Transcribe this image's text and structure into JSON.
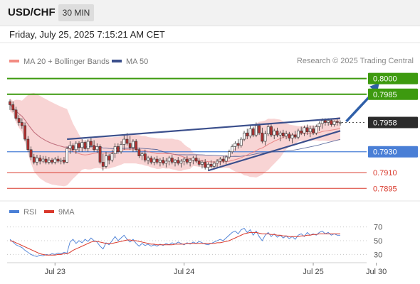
{
  "header": {
    "symbol": "USD/CHF",
    "timeframe": "30 MIN"
  },
  "datetime": "Friday, July 25, 2025 7:15:21 AM CET",
  "credit": "Research © 2025 Trading Central",
  "colors": {
    "green": "#3d9a0f",
    "blue": "#4a7fd6",
    "red": "#d9382b",
    "dark": "#2b2b2b",
    "arrow": "#2f5fa8",
    "bollinger": "#f6c6c6",
    "ma20": "#e57373",
    "ma50": "#3b4f8c",
    "candle_up": "#ffffff",
    "candle_down": "#b03030"
  },
  "chart_data": [
    {
      "type": "candlestick",
      "ylim": [
        0.7885,
        0.8012
      ],
      "legend": [
        {
          "label": "MA 20 + Bollinger Bands",
          "color": "#f28b82"
        },
        {
          "label": "MA 50",
          "color": "#3b4f8c"
        }
      ],
      "x_ticks": [
        {
          "label": "Jul 23",
          "x": 15
        },
        {
          "label": "Jul 24",
          "x": 58
        },
        {
          "label": "Jul 25",
          "x": 101
        },
        {
          "label": "Jul 30",
          "x": 122
        }
      ],
      "levels": [
        {
          "value": 0.8,
          "label": "0.8000",
          "kind": "resistance",
          "color": "#3d9a0f"
        },
        {
          "value": 0.7985,
          "label": "0.7985",
          "kind": "resistance",
          "color": "#3d9a0f"
        },
        {
          "value": 0.7958,
          "label": "0.7958",
          "kind": "last",
          "color": "#2b2b2b"
        },
        {
          "value": 0.793,
          "label": "0.7930",
          "kind": "pivot",
          "color": "#4a7fd6"
        },
        {
          "value": 0.791,
          "label": "0.7910",
          "kind": "support",
          "color": "#d9382b"
        },
        {
          "value": 0.7895,
          "label": "0.7895",
          "kind": "support",
          "color": "#d9382b"
        }
      ],
      "trendlines": [
        {
          "x": [
            19,
            110
          ],
          "y": [
            0.7942,
            0.7962
          ]
        },
        {
          "x": [
            66,
            110
          ],
          "y": [
            0.7912,
            0.795
          ]
        }
      ],
      "forecast_arrow": {
        "x": [
          112,
          123
        ],
        "y": [
          0.7959,
          0.7996
        ]
      },
      "candles": [
        [
          0,
          0.7978,
          0.798,
          0.797,
          0.7975
        ],
        [
          1,
          0.7975,
          0.7978,
          0.7968,
          0.797
        ],
        [
          2,
          0.797,
          0.7973,
          0.796,
          0.7962
        ],
        [
          3,
          0.7962,
          0.7965,
          0.7955,
          0.7958
        ],
        [
          4,
          0.7958,
          0.7962,
          0.7952,
          0.7955
        ],
        [
          5,
          0.7955,
          0.7958,
          0.794,
          0.7942
        ],
        [
          6,
          0.7942,
          0.7945,
          0.793,
          0.7932
        ],
        [
          7,
          0.7932,
          0.7935,
          0.7922,
          0.7925
        ],
        [
          8,
          0.7925,
          0.7928,
          0.7918,
          0.792
        ],
        [
          9,
          0.792,
          0.7927,
          0.7917,
          0.7924
        ],
        [
          10,
          0.7924,
          0.7927,
          0.7918,
          0.7921
        ],
        [
          11,
          0.7921,
          0.7926,
          0.7919,
          0.7923
        ],
        [
          12,
          0.7923,
          0.7926,
          0.7918,
          0.792
        ],
        [
          13,
          0.792,
          0.7925,
          0.7918,
          0.7922
        ],
        [
          14,
          0.7922,
          0.7924,
          0.7918,
          0.792
        ],
        [
          15,
          0.792,
          0.7925,
          0.7918,
          0.7923
        ],
        [
          16,
          0.7923,
          0.7926,
          0.7919,
          0.7921
        ],
        [
          17,
          0.7921,
          0.7924,
          0.7918,
          0.7922
        ],
        [
          18,
          0.7922,
          0.7925,
          0.7918,
          0.792
        ],
        [
          19,
          0.792,
          0.7935,
          0.7919,
          0.7933
        ],
        [
          20,
          0.7933,
          0.794,
          0.7928,
          0.7936
        ],
        [
          21,
          0.7936,
          0.7938,
          0.793,
          0.7932
        ],
        [
          22,
          0.7932,
          0.794,
          0.7928,
          0.7938
        ],
        [
          23,
          0.7938,
          0.794,
          0.793,
          0.7934
        ],
        [
          24,
          0.7934,
          0.7942,
          0.793,
          0.7939
        ],
        [
          25,
          0.7939,
          0.7941,
          0.7931,
          0.7933
        ],
        [
          26,
          0.7933,
          0.7942,
          0.793,
          0.794
        ],
        [
          27,
          0.794,
          0.7943,
          0.7934,
          0.7936
        ],
        [
          28,
          0.7936,
          0.7941,
          0.793,
          0.7932
        ],
        [
          29,
          0.7932,
          0.7938,
          0.7929,
          0.7935
        ],
        [
          30,
          0.7935,
          0.7937,
          0.7918,
          0.792
        ],
        [
          31,
          0.792,
          0.7928,
          0.7912,
          0.7916
        ],
        [
          32,
          0.7916,
          0.793,
          0.7914,
          0.7926
        ],
        [
          33,
          0.7926,
          0.7928,
          0.7918,
          0.7922
        ],
        [
          34,
          0.7922,
          0.7932,
          0.792,
          0.7928
        ],
        [
          35,
          0.7928,
          0.7938,
          0.7924,
          0.7935
        ],
        [
          36,
          0.7935,
          0.7938,
          0.7928,
          0.793
        ],
        [
          37,
          0.793,
          0.794,
          0.7928,
          0.7937
        ],
        [
          38,
          0.7937,
          0.7946,
          0.7932,
          0.7942
        ],
        [
          39,
          0.7942,
          0.7948,
          0.7936,
          0.7938
        ],
        [
          40,
          0.7938,
          0.7945,
          0.7932,
          0.7934
        ],
        [
          41,
          0.7934,
          0.7942,
          0.793,
          0.794
        ],
        [
          42,
          0.794,
          0.7942,
          0.793,
          0.7932
        ],
        [
          43,
          0.7932,
          0.7934,
          0.7924,
          0.7926
        ],
        [
          44,
          0.7926,
          0.793,
          0.7922,
          0.7928
        ],
        [
          45,
          0.7928,
          0.7932,
          0.792,
          0.7922
        ],
        [
          46,
          0.7922,
          0.7926,
          0.7918,
          0.7924
        ],
        [
          47,
          0.7924,
          0.7926,
          0.7918,
          0.792
        ],
        [
          48,
          0.792,
          0.7925,
          0.7917,
          0.7923
        ],
        [
          49,
          0.7923,
          0.7926,
          0.7918,
          0.792
        ],
        [
          50,
          0.792,
          0.7924,
          0.7916,
          0.7922
        ],
        [
          51,
          0.7922,
          0.7925,
          0.7917,
          0.7919
        ],
        [
          52,
          0.7919,
          0.7924,
          0.7915,
          0.7921
        ],
        [
          53,
          0.7921,
          0.7926,
          0.7917,
          0.7924
        ],
        [
          54,
          0.7924,
          0.7927,
          0.7918,
          0.792
        ],
        [
          55,
          0.792,
          0.7923,
          0.7916,
          0.7922
        ],
        [
          56,
          0.7922,
          0.7925,
          0.7917,
          0.7919
        ],
        [
          57,
          0.7919,
          0.7923,
          0.7915,
          0.7921
        ],
        [
          58,
          0.7921,
          0.7925,
          0.7917,
          0.7923
        ],
        [
          59,
          0.7923,
          0.7926,
          0.7918,
          0.792
        ],
        [
          60,
          0.792,
          0.7924,
          0.7916,
          0.7922
        ],
        [
          61,
          0.7922,
          0.7926,
          0.7918,
          0.7924
        ],
        [
          62,
          0.7924,
          0.7927,
          0.7919,
          0.7921
        ],
        [
          63,
          0.7921,
          0.7924,
          0.7916,
          0.7918
        ],
        [
          64,
          0.7918,
          0.7922,
          0.7914,
          0.792
        ],
        [
          65,
          0.792,
          0.7923,
          0.7913,
          0.7915
        ],
        [
          66,
          0.7915,
          0.792,
          0.7912,
          0.7918
        ],
        [
          67,
          0.7918,
          0.7922,
          0.7914,
          0.7916
        ],
        [
          68,
          0.7916,
          0.7921,
          0.7913,
          0.7919
        ],
        [
          69,
          0.7919,
          0.7923,
          0.7915,
          0.7921
        ],
        [
          70,
          0.7921,
          0.7925,
          0.7917,
          0.7923
        ],
        [
          71,
          0.7923,
          0.7926,
          0.7919,
          0.7921
        ],
        [
          72,
          0.7921,
          0.7927,
          0.7918,
          0.7925
        ],
        [
          73,
          0.7925,
          0.7932,
          0.7923,
          0.793
        ],
        [
          74,
          0.793,
          0.7937,
          0.7928,
          0.7935
        ],
        [
          75,
          0.7935,
          0.794,
          0.7931,
          0.7938
        ],
        [
          76,
          0.7938,
          0.7942,
          0.7933,
          0.7936
        ],
        [
          77,
          0.7936,
          0.7944,
          0.7934,
          0.7942
        ],
        [
          78,
          0.7942,
          0.795,
          0.794,
          0.7948
        ],
        [
          79,
          0.7948,
          0.7952,
          0.7942,
          0.7945
        ],
        [
          80,
          0.7945,
          0.7955,
          0.7943,
          0.7952
        ],
        [
          81,
          0.7952,
          0.7954,
          0.7944,
          0.7946
        ],
        [
          82,
          0.7946,
          0.7958,
          0.7944,
          0.7955
        ],
        [
          83,
          0.7955,
          0.7957,
          0.7946,
          0.7948
        ],
        [
          84,
          0.7948,
          0.7953,
          0.7938,
          0.794
        ],
        [
          85,
          0.794,
          0.795,
          0.7936,
          0.7947
        ],
        [
          86,
          0.7947,
          0.7957,
          0.7945,
          0.7954
        ],
        [
          87,
          0.7954,
          0.7956,
          0.7944,
          0.7946
        ],
        [
          88,
          0.7946,
          0.7952,
          0.7942,
          0.795
        ],
        [
          89,
          0.795,
          0.7953,
          0.7944,
          0.7946
        ],
        [
          90,
          0.7946,
          0.795,
          0.794,
          0.7948
        ],
        [
          91,
          0.7948,
          0.7951,
          0.7943,
          0.7945
        ],
        [
          92,
          0.7945,
          0.795,
          0.7942,
          0.7947
        ],
        [
          93,
          0.7947,
          0.7949,
          0.794,
          0.7943
        ],
        [
          94,
          0.7943,
          0.7948,
          0.7938,
          0.7946
        ],
        [
          95,
          0.7946,
          0.795,
          0.7942,
          0.7944
        ],
        [
          96,
          0.7944,
          0.7952,
          0.7942,
          0.795
        ],
        [
          97,
          0.795,
          0.7954,
          0.7946,
          0.7948
        ],
        [
          98,
          0.7948,
          0.7955,
          0.7945,
          0.7953
        ],
        [
          99,
          0.7953,
          0.7956,
          0.7946,
          0.7949
        ],
        [
          100,
          0.7949,
          0.7955,
          0.7944,
          0.7952
        ],
        [
          101,
          0.7952,
          0.7955,
          0.7946,
          0.7948
        ],
        [
          102,
          0.7948,
          0.7956,
          0.7946,
          0.7954
        ],
        [
          103,
          0.7954,
          0.7959,
          0.795,
          0.7957
        ],
        [
          104,
          0.7957,
          0.7962,
          0.7952,
          0.796
        ],
        [
          105,
          0.796,
          0.7962,
          0.7955,
          0.7958
        ],
        [
          106,
          0.7958,
          0.7962,
          0.7955,
          0.796
        ],
        [
          107,
          0.796,
          0.7961,
          0.7954,
          0.7956
        ],
        [
          108,
          0.7956,
          0.796,
          0.7954,
          0.7959
        ],
        [
          109,
          0.7959,
          0.7961,
          0.7955,
          0.7958
        ],
        [
          110,
          0.7958,
          0.796,
          0.7955,
          0.7958
        ]
      ]
    },
    {
      "type": "line",
      "ylim": [
        20,
        80
      ],
      "legend": [
        {
          "label": "RSI",
          "color": "#4a7fd6"
        },
        {
          "label": "9MA",
          "color": "#d9382b"
        }
      ],
      "y_ticks": [
        70,
        50,
        30
      ],
      "series": [
        {
          "name": "RSI",
          "values": [
            52,
            48,
            44,
            42,
            40,
            36,
            33,
            30,
            28,
            27,
            29,
            28,
            30,
            29,
            31,
            30,
            32,
            31,
            33,
            32,
            48,
            52,
            46,
            50,
            47,
            52,
            49,
            54,
            50,
            48,
            42,
            38,
            47,
            44,
            50,
            56,
            50,
            54,
            58,
            52,
            48,
            52,
            46,
            42,
            46,
            43,
            45,
            42,
            44,
            42,
            45,
            43,
            46,
            44,
            47,
            45,
            48,
            46,
            44,
            47,
            45,
            48,
            46,
            49,
            47,
            45,
            44,
            46,
            48,
            50,
            52,
            50,
            54,
            58,
            62,
            64,
            60,
            66,
            68,
            62,
            66,
            58,
            64,
            56,
            50,
            58,
            62,
            56,
            60,
            55,
            58,
            54,
            57,
            53,
            56,
            52,
            58,
            60,
            56,
            62,
            58,
            60,
            58,
            62,
            64,
            60,
            62,
            58,
            60,
            58,
            58
          ]
        },
        {
          "name": "9MA",
          "values": [
            50,
            49,
            47,
            45,
            43,
            41,
            39,
            37,
            35,
            33,
            31,
            30,
            29,
            29,
            29,
            29,
            30,
            30,
            31,
            31,
            33,
            36,
            38,
            40,
            42,
            44,
            46,
            48,
            49,
            49,
            48,
            47,
            46,
            46,
            46,
            47,
            48,
            49,
            50,
            51,
            51,
            50,
            50,
            49,
            48,
            47,
            46,
            45,
            45,
            44,
            44,
            44,
            44,
            44,
            44,
            45,
            45,
            45,
            45,
            46,
            46,
            46,
            46,
            46,
            46,
            46,
            46,
            46,
            46,
            47,
            47,
            48,
            49,
            50,
            52,
            54,
            56,
            58,
            60,
            61,
            62,
            62,
            62,
            61,
            60,
            60,
            60,
            59,
            59,
            58,
            58,
            57,
            57,
            56,
            56,
            56,
            56,
            57,
            57,
            58,
            58,
            59,
            59,
            60,
            60,
            60,
            60,
            60,
            60,
            60,
            60
          ]
        }
      ]
    }
  ]
}
